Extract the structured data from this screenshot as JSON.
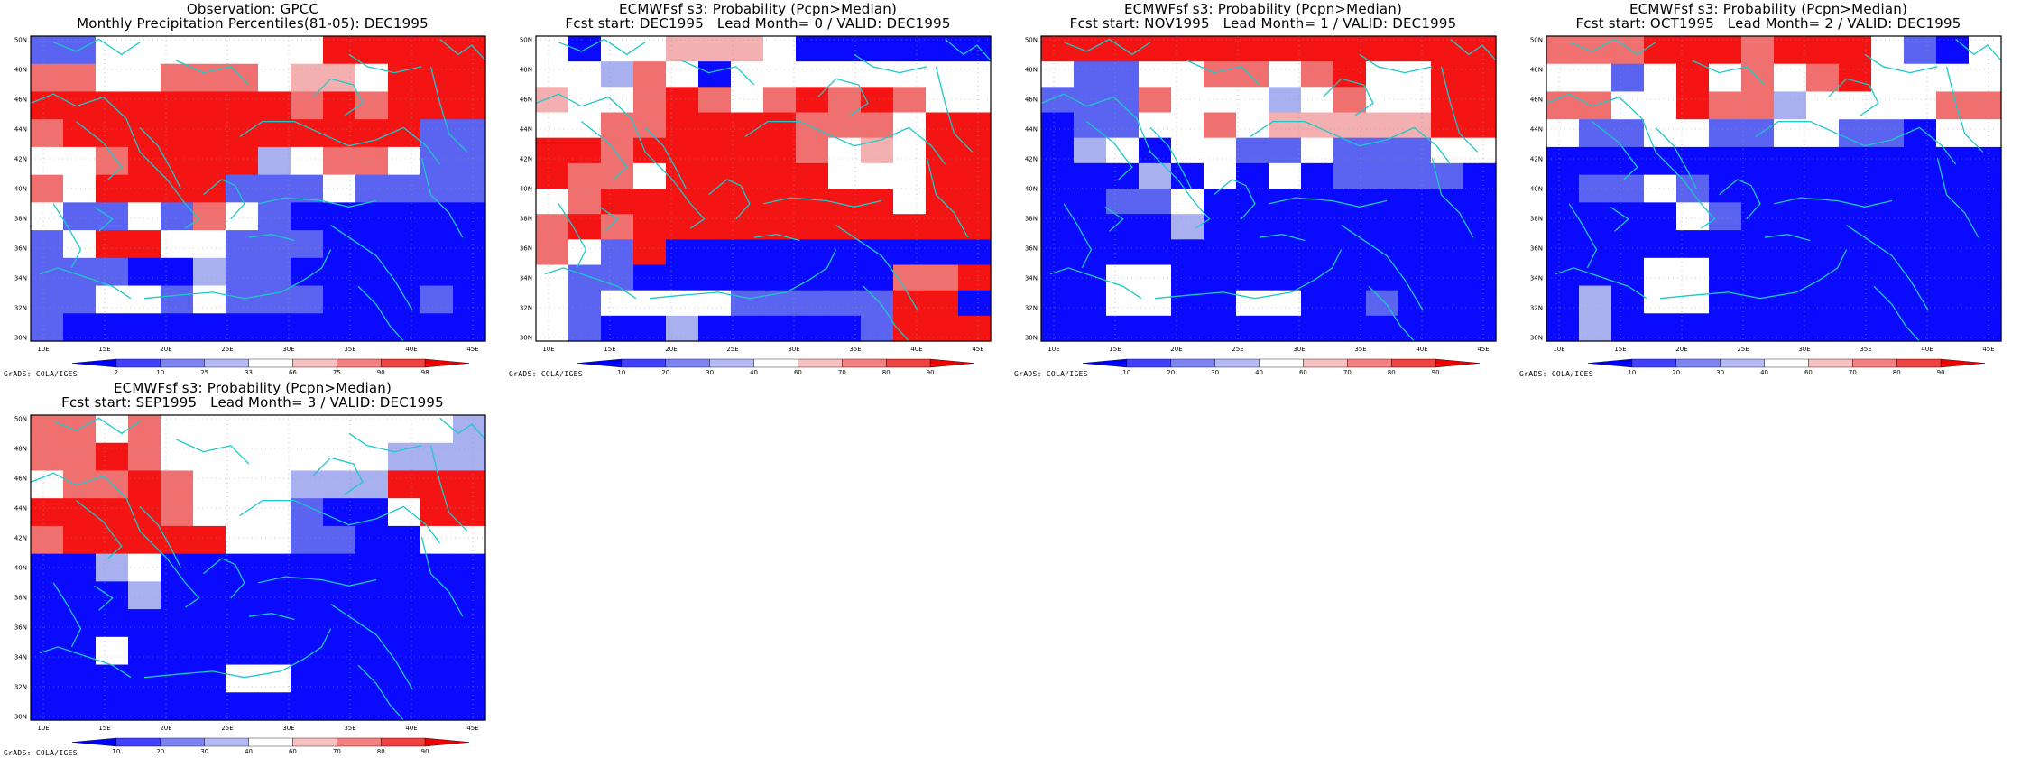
{
  "panels": [
    {
      "title": "Observation: GPCC",
      "subtitle": "Monthly Precipitation Percentiles(81-05): DEC1995",
      "colorbar": [
        "2",
        "10",
        "25",
        "33",
        "66",
        "75",
        "90",
        "98"
      ],
      "grid": [
        "bbnnnnnmmRRRRR",
        "rrwwrrrwsswRRR",
        "RRRRRRRRrRrRRR",
        "rRRRRRRRRRRRbb",
        "wwrRRRRlnrrwbb",
        "rwRRRRbbbnbbbb",
        "wbbwbrwbBBBBBB",
        "bwRRwwbbbBBBBB",
        "bbbBBlbbBBBBBB",
        "bbwwbwbbbBBBbB",
        "bBBBBBBBBBBBBB"
      ]
    },
    {
      "title": "ECMWFsf s3: Probability (Pcpn>Median)",
      "subtitle": "Fcst start: DEC1995   Lead Month= 0 / VALID: DEC1995",
      "colorbar": [
        "10",
        "20",
        "30",
        "40",
        "60",
        "70",
        "80",
        "90"
      ],
      "grid": [
        "wBwwssswBBBBBB",
        "wwlrwBwwwwwwww",
        "swwrRrwrRrRrww",
        "wwrrRRRRrrrwRR",
        "RRrRRRRRrwswRR",
        "RrrwRRRRRwwwRR",
        "wrRRRRRRRRRwRR",
        "rRrRRRRRRRRRRR",
        "rwbRBBBBBBBBBB",
        "wbbBBBBBBBBrrR",
        "wbwwwwbbbbbRRB",
        "wbBBlBBBBBbRRR"
      ]
    },
    {
      "title": "ECMWFsf s3: Probability (Pcpn>Median)",
      "subtitle": "Fcst start: NOV1995   Lead Month= 1 / VALID: DEC1995",
      "colorbar": [
        "10",
        "20",
        "30",
        "40",
        "60",
        "70",
        "80",
        "90"
      ],
      "grid": [
        "RRRRRRRRRRRRRR",
        "wbbwwrrwrRwwRR",
        "bbbrwwwlwrwwRR",
        "BbbwwrwsssssRR",
        "BlwBwwbbwbbbww",
        "BBBlBwBwBbbbbB",
        "BBbbwBBBBBBBBB",
        "BBBBlBBBBBBBBB",
        "BBBBBBBBBBBBBB",
        "BBwwBBBBBBBBBB",
        "BBwwBBwwBBbBBB",
        "BBBBBBBBBBBBBB"
      ]
    },
    {
      "title": "ECMWFsf s3: Probability (Pcpn>Median)",
      "subtitle": "Fcst start: OCT1995   Lead Month= 2 / VALID: DEC1995",
      "colorbar": [
        "10",
        "20",
        "30",
        "40",
        "60",
        "70",
        "80",
        "90"
      ],
      "grid": [
        "rrrRRRrRRRwbBw",
        "wwbwRwrwrRwwww",
        "rrwwRrrlwwwwrr",
        "wbbwwbbwwbbBww",
        "BBBBBBBBBBBBBB",
        "BbbwbBBBBBBBBB",
        "BBBBwbBBBBBBBB",
        "BBBBBBBBBBBBBB",
        "BBBwwBBBBBBBBB",
        "BlBwwBBBBBBBBB",
        "BlBBBBBBBBBBBB"
      ]
    },
    {
      "title": "ECMWFsf s3: Probability (Pcpn>Median)",
      "subtitle": "Fcst start: SEP1995   Lead Month= 3 / VALID: DEC1995",
      "colorbar": [
        "10",
        "20",
        "30",
        "40",
        "60",
        "70",
        "80",
        "90"
      ],
      "grid": [
        "rrwrwwwwwwwwwl",
        "rrRrwwwwwwwlll",
        "wrrRrwwwlllRRR",
        "RRRRrwwwbBBwRR",
        "rRRRRRwwbbBBww",
        "BBlwBBBBBBBBBB",
        "BBBlBBBBBBBBBB",
        "BBBBBBBBBBBBBB",
        "BBwBBBBBBBBBBB",
        "BBBBBBwwBBBBBB",
        "BBBBBBBBBBBBBB"
      ]
    }
  ],
  "lat_labels": [
    "30N",
    "32N",
    "34N",
    "36N",
    "38N",
    "40N",
    "42N",
    "44N",
    "46N",
    "48N",
    "50N"
  ],
  "lon_labels": [
    "10E",
    "15E",
    "20E",
    "25E",
    "30E",
    "35E",
    "40E",
    "45E"
  ],
  "credit": "GrADS: COLA/IGES",
  "palette": {
    "B": "#0a0aff",
    "b": "#5a64f0",
    "l": "#a8b0f0",
    "w": "#ffffff",
    "s": "#f4b0b0",
    "r": "#f07070",
    "R": "#f41414"
  },
  "coast_color": "#1cc8c8"
}
